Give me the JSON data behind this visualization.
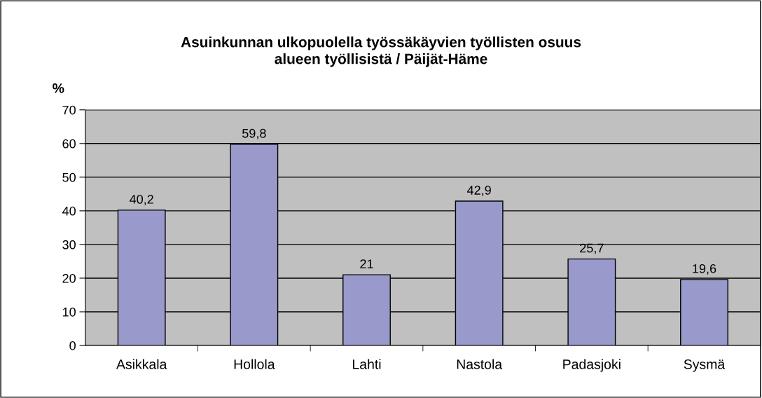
{
  "chart_data": {
    "type": "bar",
    "title": "Asuinkunnan ulkopuolella työssäkäyvien työllisten osuus\nalueen työllisistä / Päijät-Häme",
    "ylabel": "%",
    "categories": [
      "Asikkala",
      "Hollola",
      "Lahti",
      "Nastola",
      "Padasjoki",
      "Sysmä"
    ],
    "values": [
      40.2,
      59.8,
      21,
      42.9,
      25.7,
      19.6
    ],
    "value_labels": [
      "40,2",
      "59,8",
      "21",
      "42,9",
      "25,7",
      "19,6"
    ],
    "color": "#9999cc",
    "ylim": [
      0,
      70
    ],
    "yticks": [
      0,
      10,
      20,
      30,
      40,
      50,
      60,
      70
    ],
    "grid": "y",
    "legend": false
  }
}
